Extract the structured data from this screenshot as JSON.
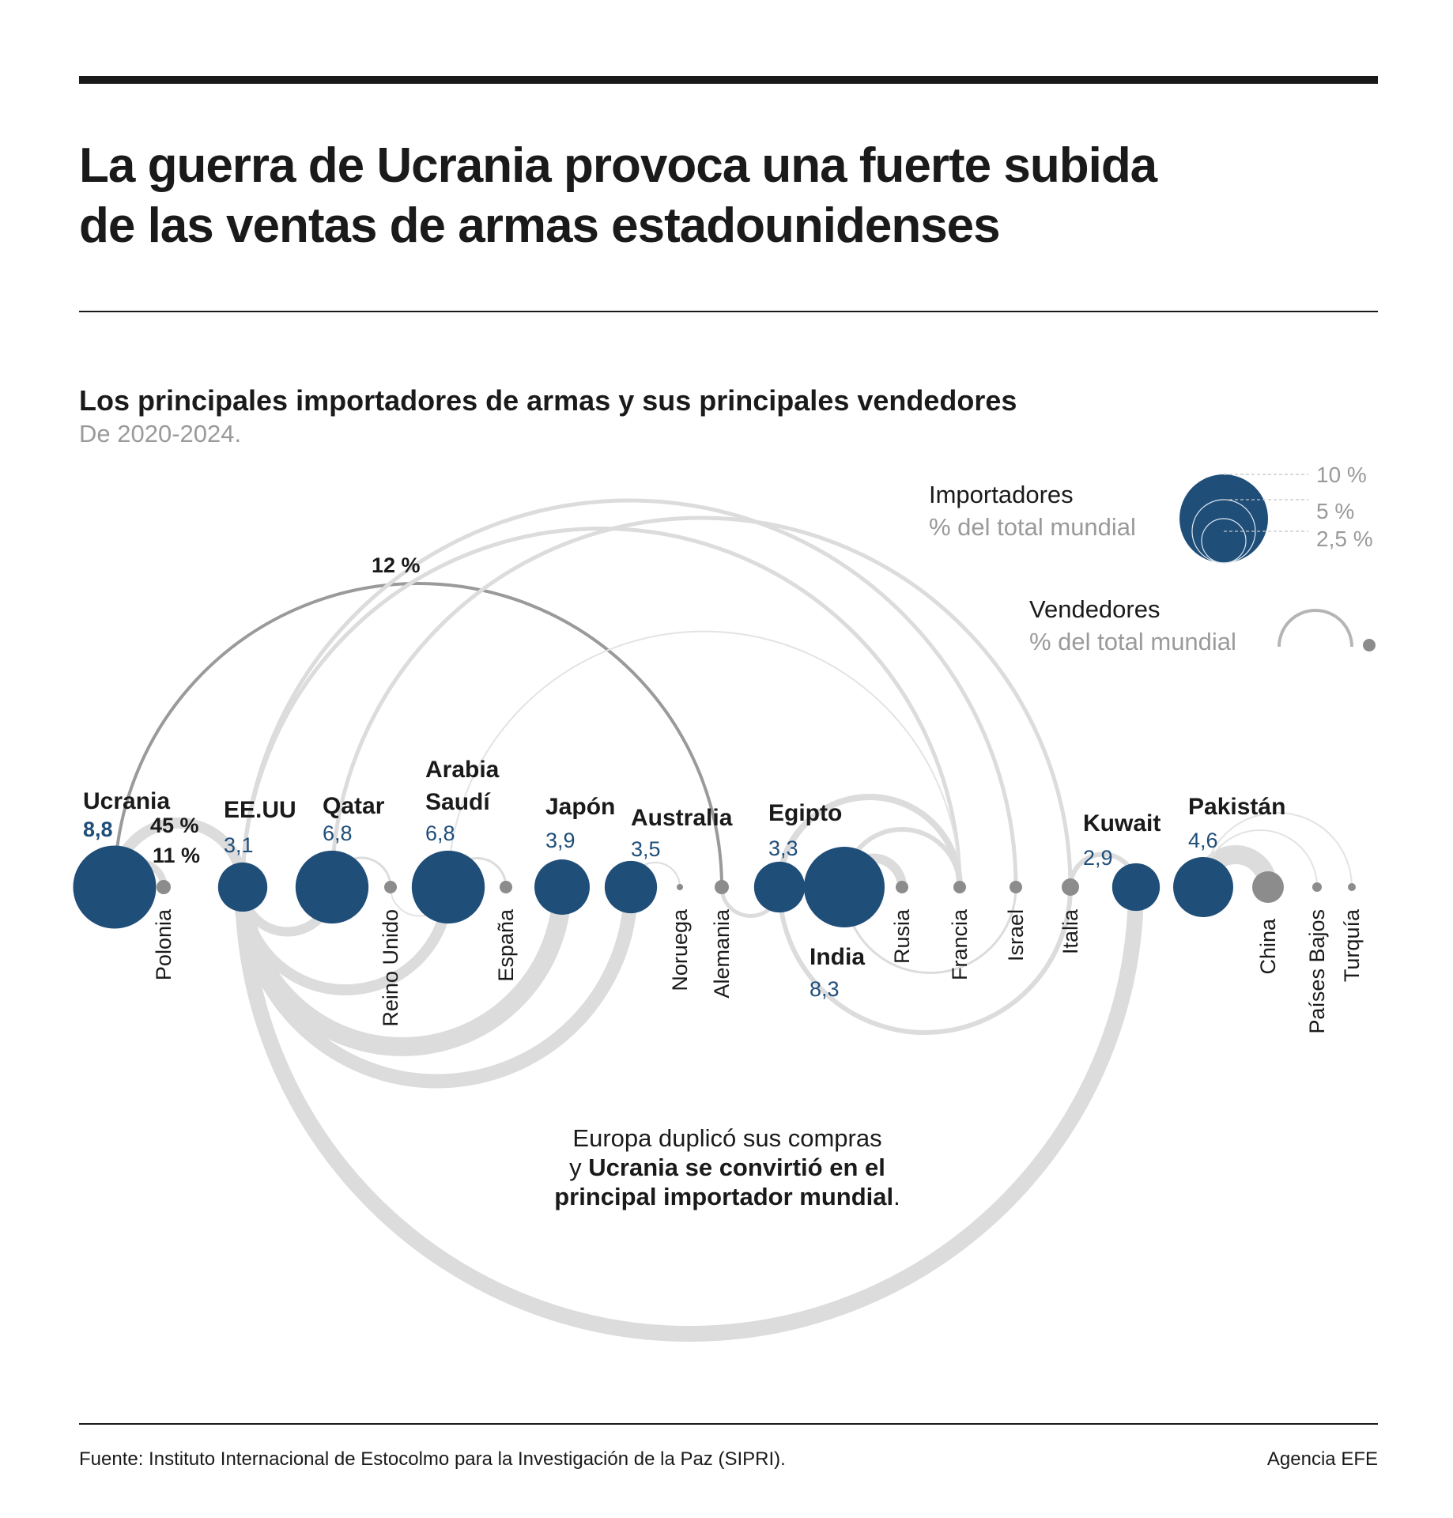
{
  "header": {
    "title_line1": "La guerra de Ucrania provoca una fuerte subida",
    "title_line2": "de las ventas de armas estadounidenses"
  },
  "colors": {
    "importer": "#1f4e79",
    "seller": "#8c8c8c",
    "flow": "#dcdcdc",
    "highlight_flow": "#9a9a9a"
  },
  "chart_data": {
    "type": "arc-diagram",
    "title": "Los principales importadores de armas y sus principales vendedores",
    "subtitle": "De 2020-2024.",
    "importers": [
      {
        "name": "Ucrania",
        "share": "8,8",
        "value": 8.8
      },
      {
        "name": "EE.UU",
        "share": "3,1",
        "value": 3.1
      },
      {
        "name": "Qatar",
        "share": "6,8",
        "value": 6.8
      },
      {
        "name": "Arabia Saudí",
        "share": "6,8",
        "value": 6.8
      },
      {
        "name": "Japón",
        "share": "3,9",
        "value": 3.9
      },
      {
        "name": "Australia",
        "share": "3,5",
        "value": 3.5
      },
      {
        "name": "Egipto",
        "share": "3,3",
        "value": 3.3
      },
      {
        "name": "India",
        "share": "8,3",
        "value": 8.3
      },
      {
        "name": "Kuwait",
        "share": "2,9",
        "value": 2.9
      },
      {
        "name": "Pakistán",
        "share": "4,6",
        "value": 4.6
      }
    ],
    "sellers": [
      "Polonia",
      "Reino Unido",
      "España",
      "Noruega",
      "Alemania",
      "Rusia",
      "Francia",
      "Israel",
      "Italia",
      "China",
      "Países Bajos",
      "Turquía"
    ],
    "highlighted_flows": [
      {
        "from": "EE.UU",
        "to": "Ucrania",
        "label": "45 %"
      },
      {
        "from": "Polonia",
        "to": "Ucrania",
        "label": "11 %"
      },
      {
        "from": "Alemania",
        "to": "Ucrania",
        "label": "12 %"
      }
    ],
    "legend": {
      "importers_title": "Importadores",
      "importers_unit": "% del total mundial",
      "scale": [
        "10 %",
        "5 %",
        "2,5 %"
      ],
      "sellers_title": "Vendedores",
      "sellers_unit": "% del total mundial"
    },
    "annotation": {
      "line1": "Europa duplicó sus compras",
      "line2_pre": "y ",
      "line2_bold": "Ucrania se convirtió en el",
      "line3_bold": "principal importador mundial",
      "line3_post": "."
    }
  },
  "footer": {
    "source": "Fuente: Instituto Internacional de Estocolmo para la Investigación de la Paz (SIPRI).",
    "agency": "Agencia EFE"
  }
}
